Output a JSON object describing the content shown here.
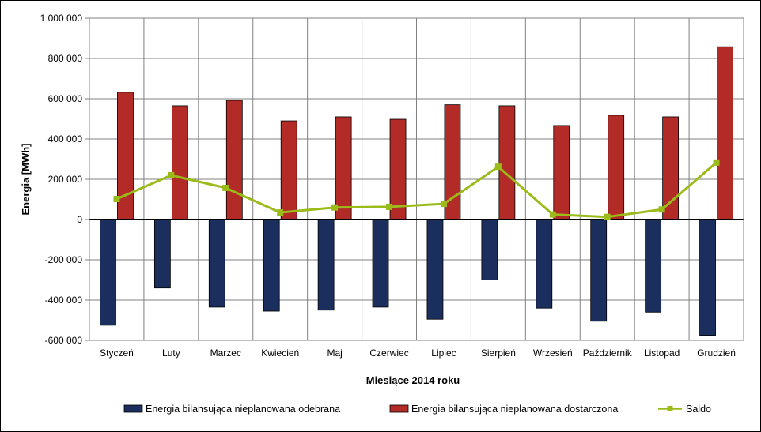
{
  "chart_data": {
    "type": "bar",
    "xlabel": "Miesiące 2014 roku",
    "ylabel": "Energia [MWh]",
    "ylim": [
      -600000,
      1000000
    ],
    "yticks": [
      1000000,
      800000,
      600000,
      400000,
      200000,
      0,
      -200000,
      -400000,
      -600000
    ],
    "ytick_labels": [
      "1 000 000",
      "800 000",
      "600 000",
      "400 000",
      "200 000",
      "0",
      "-200 000",
      "-400 000",
      "-600 000"
    ],
    "grid": true,
    "legend_position": "bottom",
    "categories": [
      "Styczeń",
      "Luty",
      "Marzec",
      "Kwiecień",
      "Maj",
      "Czerwiec",
      "Lipiec",
      "Sierpień",
      "Wrzesień",
      "Październik",
      "Listopad",
      "Grudzień"
    ],
    "series": [
      {
        "name": "Energia bilansująca nieplanowana odebrana",
        "type": "bar",
        "color": "#1b2f5e",
        "values": [
          -525000,
          -340000,
          -435000,
          -455000,
          -450000,
          -435000,
          -495000,
          -300000,
          -440000,
          -505000,
          -460000,
          -575000
        ]
      },
      {
        "name": "Energia bilansująca nieplanowana dostarczona",
        "type": "bar",
        "color": "#b22b27",
        "values": [
          632000,
          565000,
          592000,
          490000,
          510000,
          498000,
          570000,
          565000,
          467000,
          518000,
          510000,
          858000
        ]
      },
      {
        "name": "Saldo",
        "type": "line",
        "color": "#9bbb19",
        "values": [
          102000,
          220000,
          157000,
          35000,
          60000,
          63000,
          78000,
          262000,
          25000,
          13000,
          50000,
          283000
        ]
      }
    ]
  }
}
